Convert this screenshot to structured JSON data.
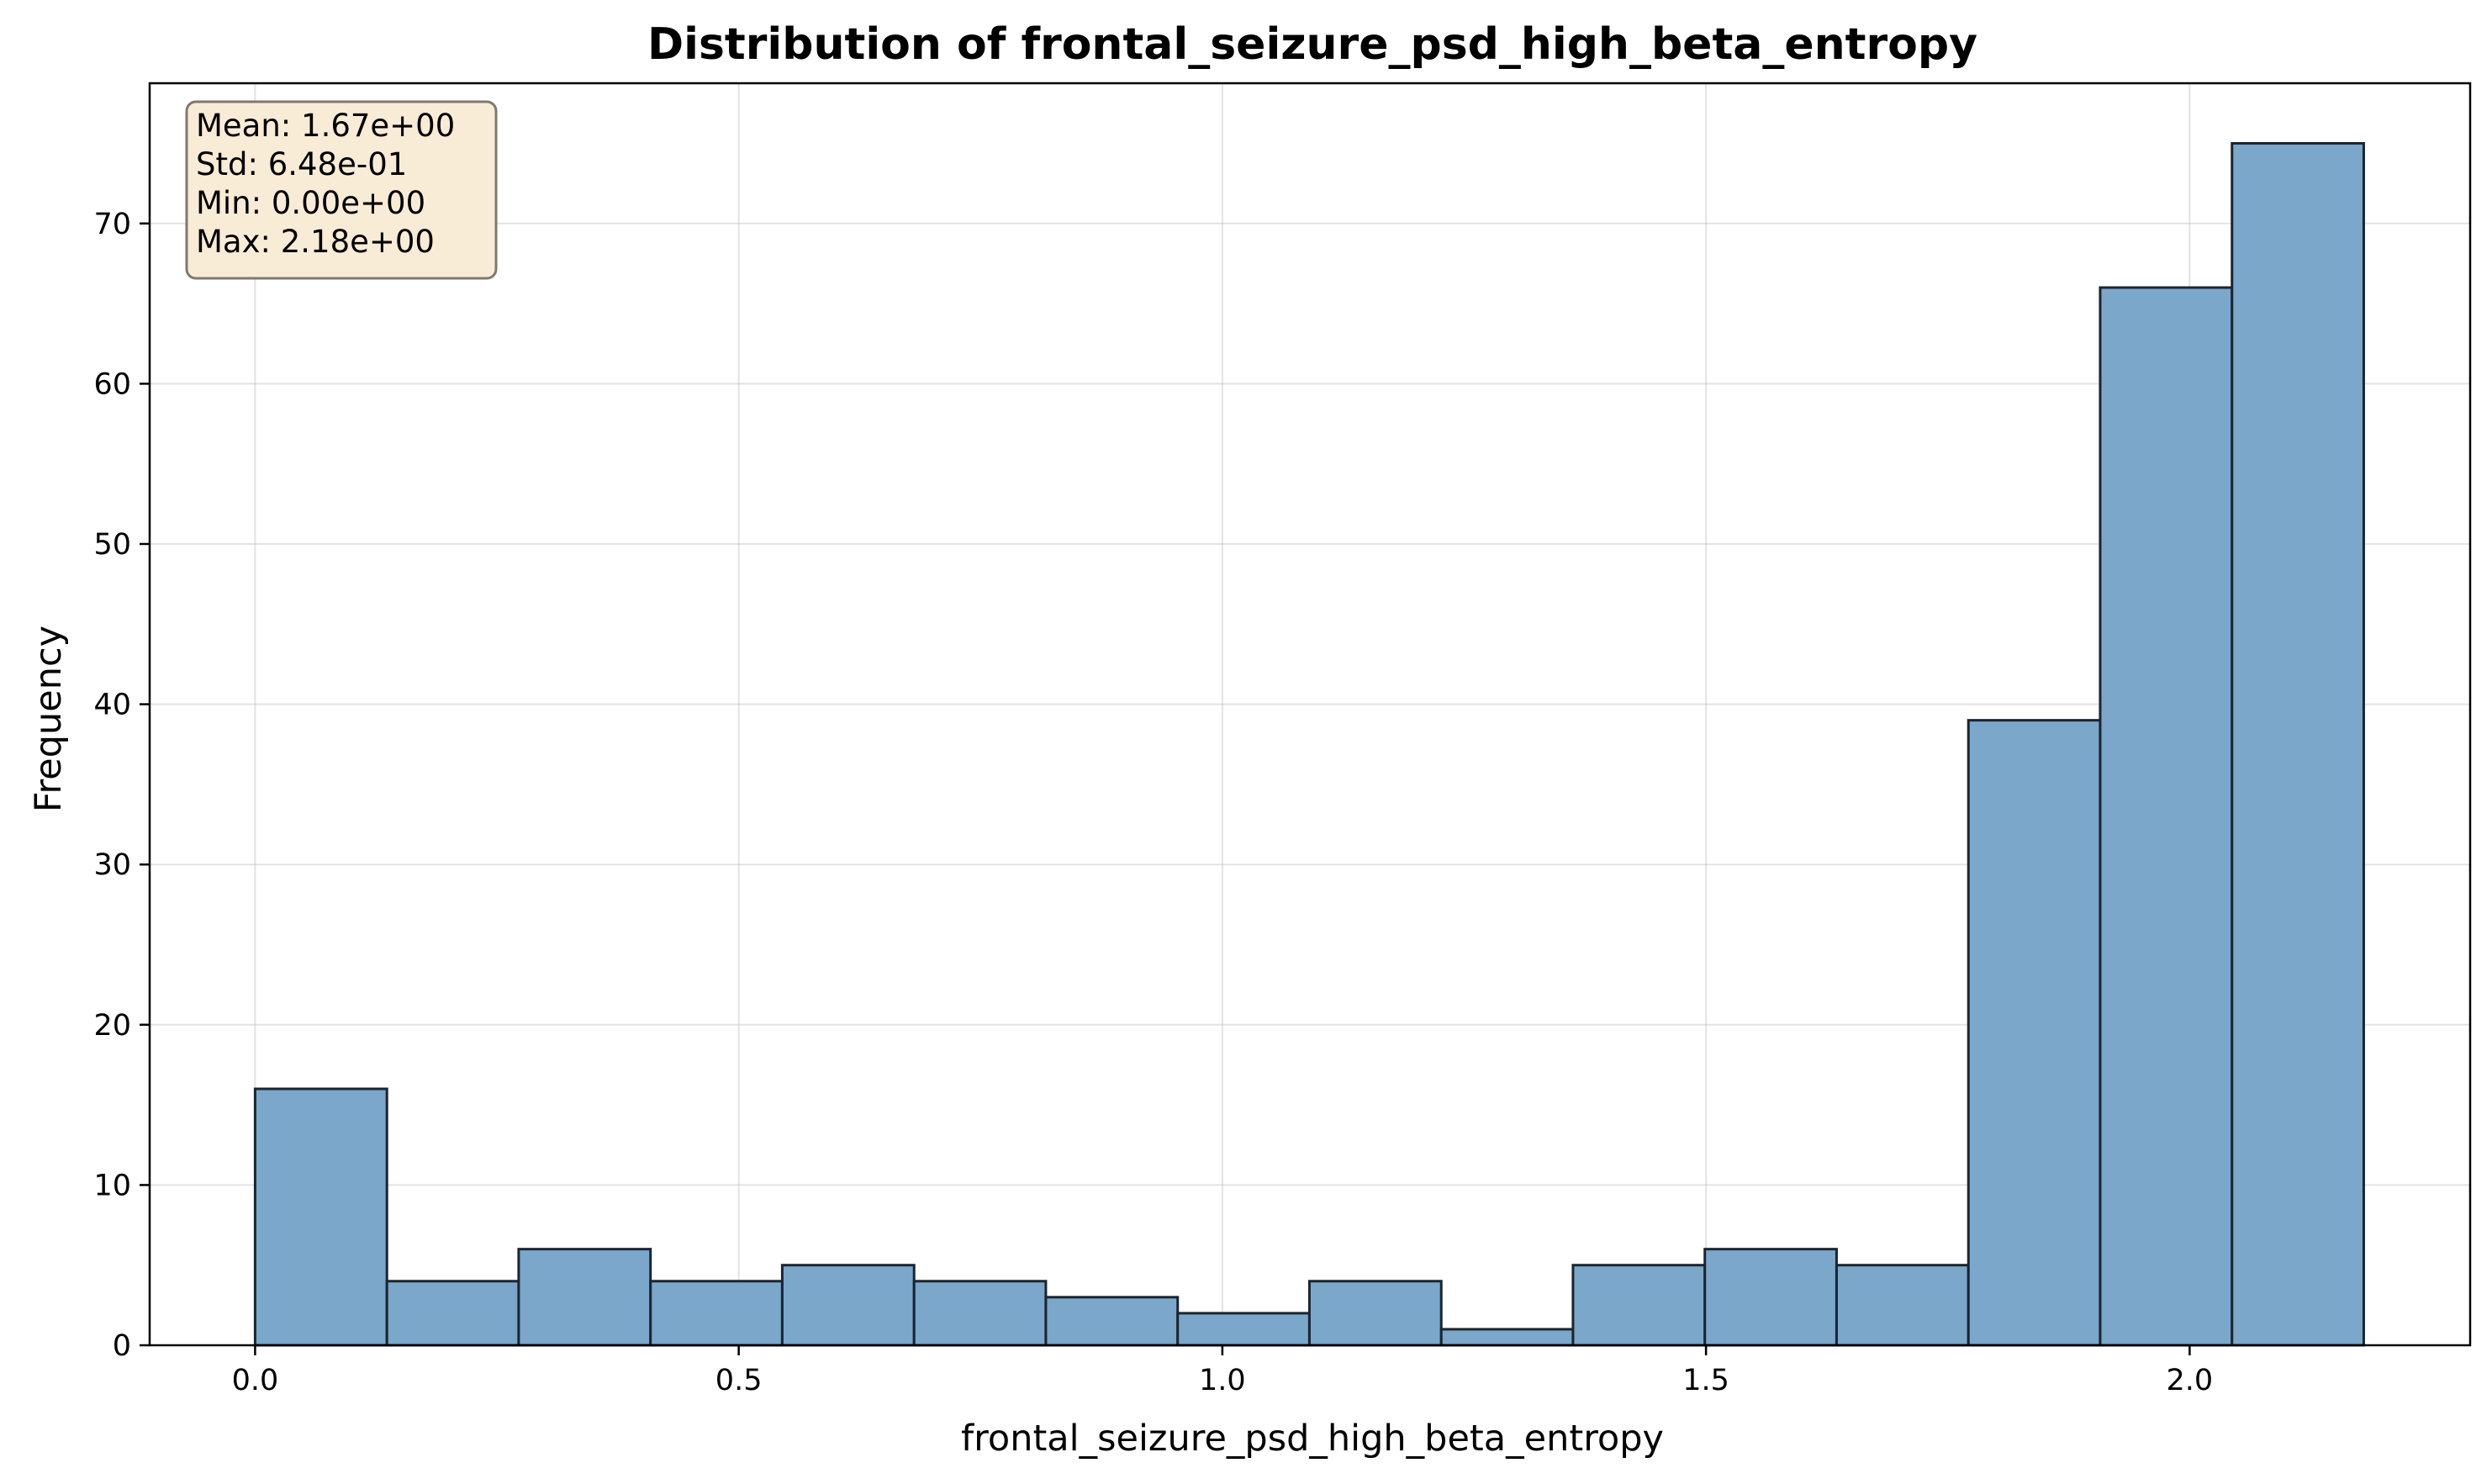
{
  "chart_data": {
    "type": "bar",
    "title": "Distribution of frontal_seizure_psd_high_beta_entropy",
    "xlabel": "frontal_seizure_psd_high_beta_entropy",
    "ylabel": "Frequency",
    "xlim": [
      -0.109,
      2.29
    ],
    "ylim": [
      0,
      78.75
    ],
    "xticks": [
      0.0,
      0.5,
      1.0,
      1.5,
      2.0
    ],
    "xtick_labels": [
      "0.0",
      "0.5",
      "1.0",
      "1.5",
      "2.0"
    ],
    "yticks": [
      0,
      10,
      20,
      30,
      40,
      50,
      60,
      70
    ],
    "ytick_labels": [
      "0",
      "10",
      "20",
      "30",
      "40",
      "50",
      "60",
      "70"
    ],
    "bin_edges": [
      0.0,
      0.1363,
      0.2725,
      0.4088,
      0.545,
      0.6813,
      0.8175,
      0.9538,
      1.09,
      1.2263,
      1.3625,
      1.4988,
      1.635,
      1.7713,
      1.9075,
      2.0438,
      2.18
    ],
    "values": [
      16,
      4,
      6,
      4,
      5,
      4,
      3,
      2,
      4,
      1,
      5,
      6,
      5,
      39,
      66,
      75
    ],
    "grid": true,
    "stats_box": {
      "position": "top-left",
      "lines": [
        "Mean: 1.67e+00",
        "Std: 6.48e-01",
        "Min: 0.00e+00",
        "Max: 2.18e+00"
      ]
    },
    "colors": {
      "bar_fill": "#7ba7cb",
      "bar_edge": "#1b2530",
      "stats_box_fill": "#f9ecd6",
      "stats_box_edge": "#7d7a72"
    }
  }
}
